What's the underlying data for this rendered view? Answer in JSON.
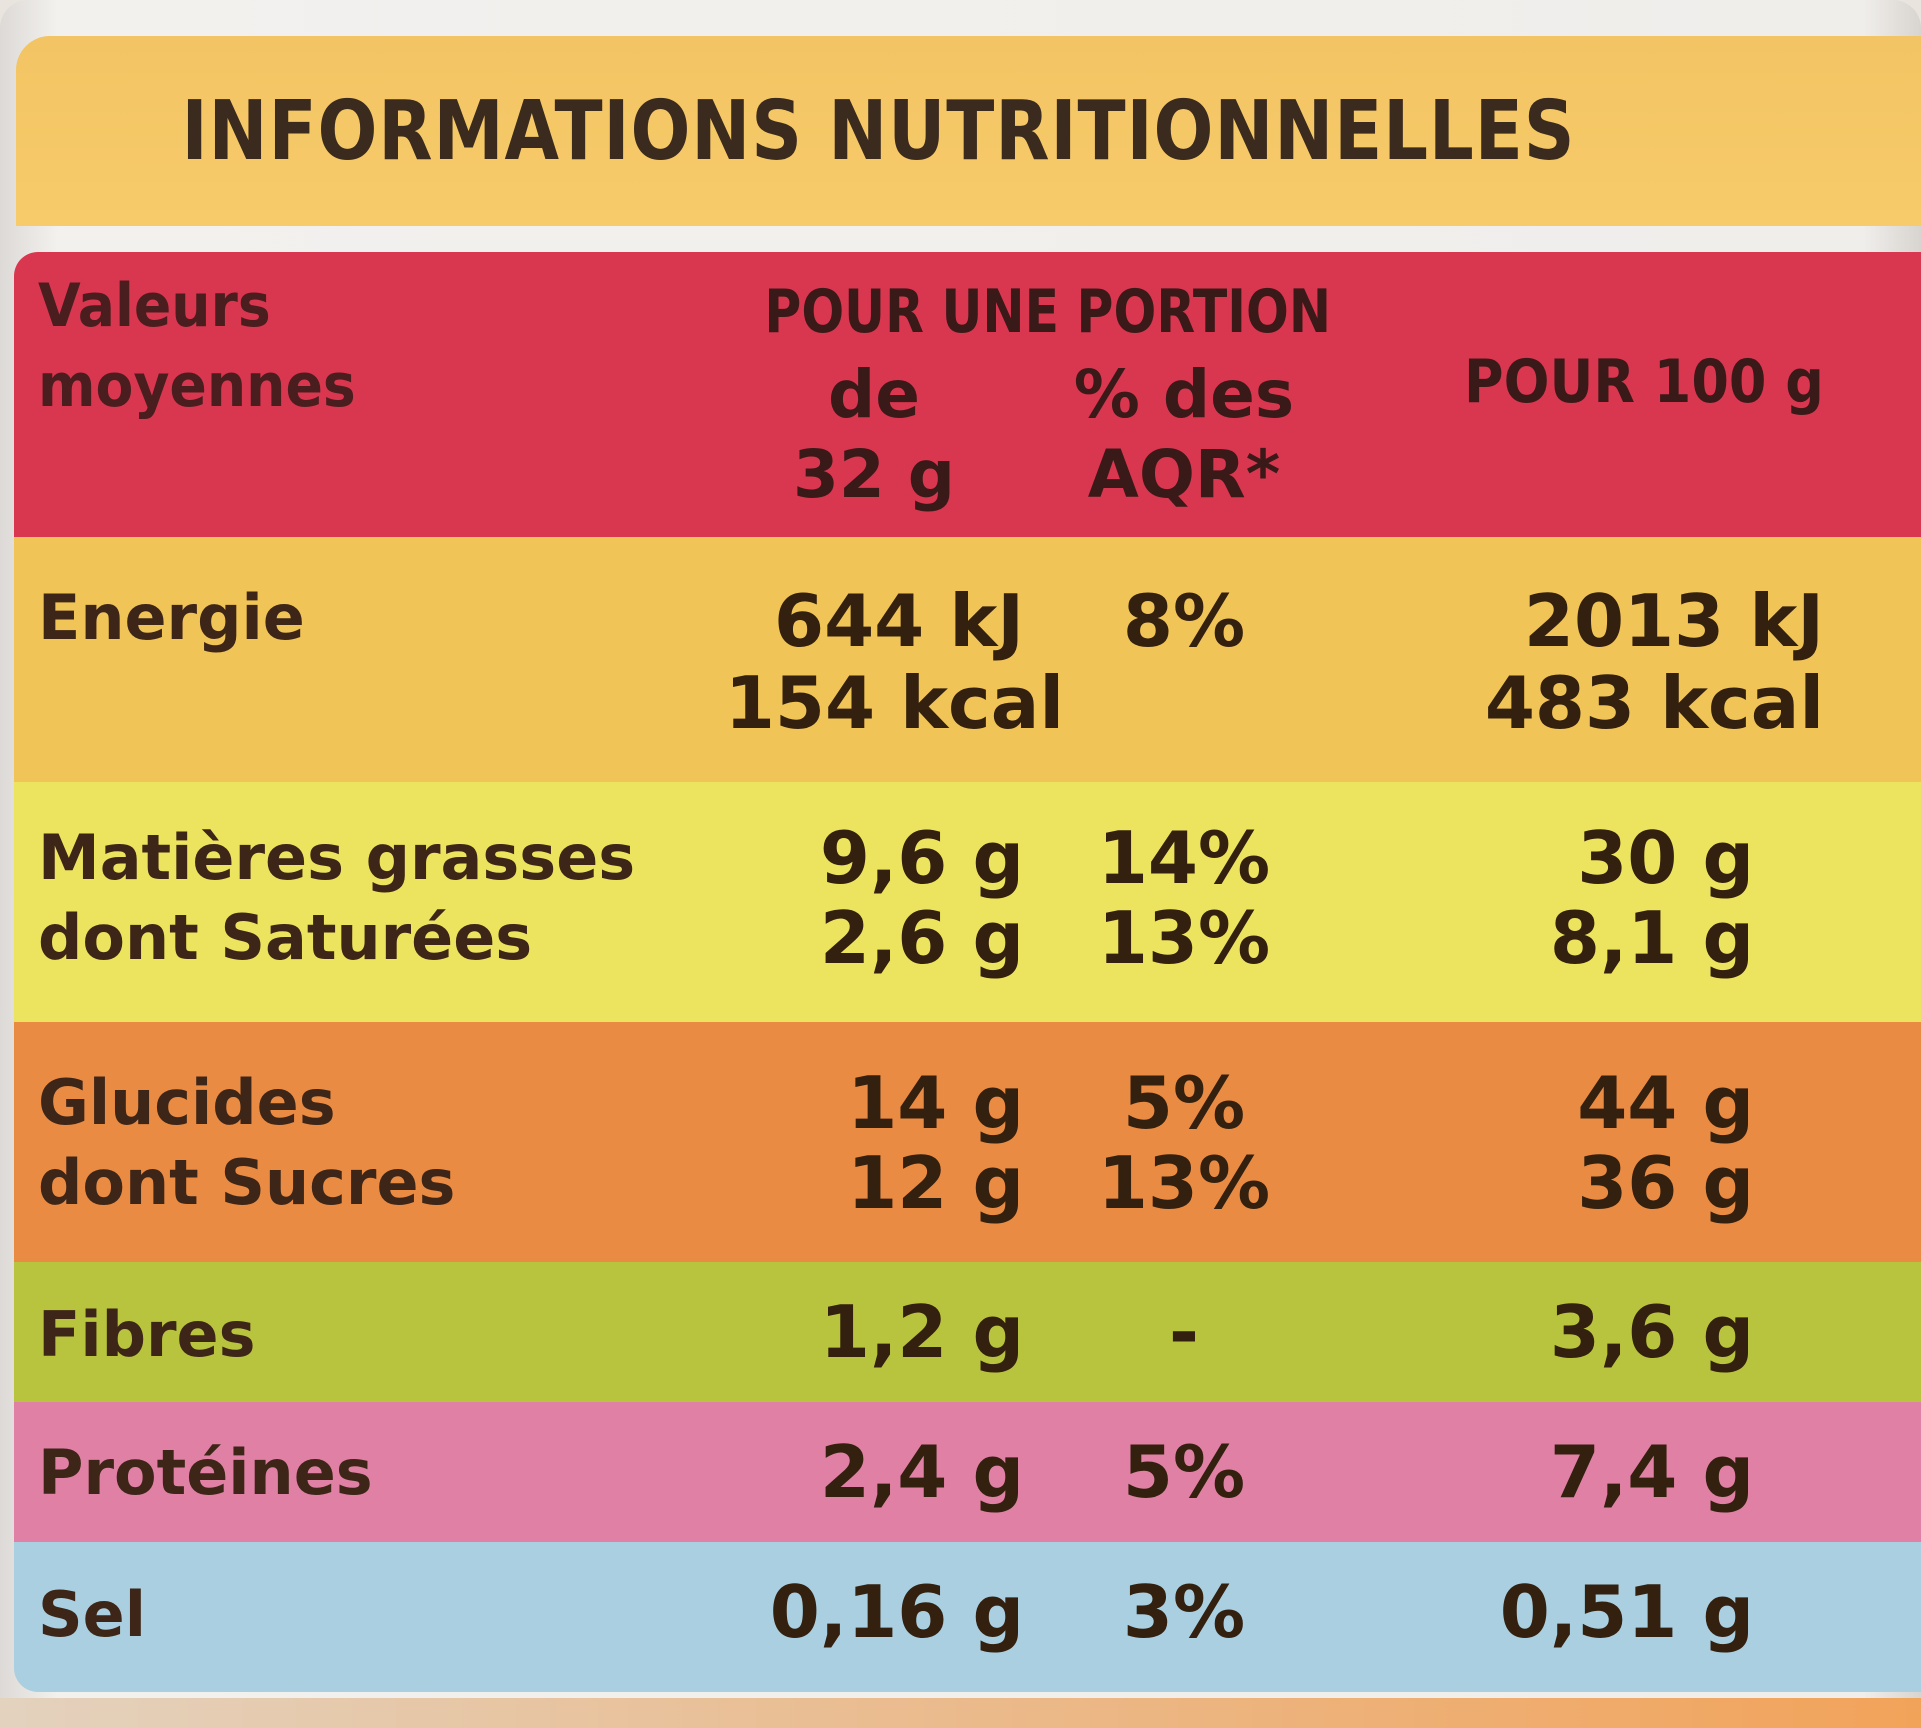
{
  "title": "INFORMATIONS NUTRITIONNELLES",
  "header": {
    "label_line1": "Valeurs",
    "label_line2": "moyennes",
    "portion_title": "POUR UNE PORTION",
    "portion_de": "de",
    "portion_qty": "32 g",
    "aqr_line1": "% des",
    "aqr_line2": "AQR*",
    "per100": "POUR 100 g"
  },
  "rows": {
    "energy": {
      "label": "Energie",
      "portion_kj": "644 kJ",
      "portion_kcal": "154 kcal",
      "aqr": "8%",
      "per100_kj": "2013 kJ",
      "per100_kcal": "483 kcal"
    },
    "fat": {
      "label": "Matières grasses",
      "portion": "9,6 g",
      "aqr": "14%",
      "per100": "30 g"
    },
    "saturated": {
      "label": "dont Saturées",
      "portion": "2,6 g",
      "aqr": "13%",
      "per100": "8,1 g"
    },
    "carbs": {
      "label": "Glucides",
      "portion": "14 g",
      "aqr": "5%",
      "per100": "44 g"
    },
    "sugars": {
      "label": "dont Sucres",
      "portion": "12 g",
      "aqr": "13%",
      "per100": "36 g"
    },
    "fibres": {
      "label": "Fibres",
      "portion": "1,2 g",
      "aqr": "-",
      "per100": "3,6 g"
    },
    "proteins": {
      "label": "Protéines",
      "portion": "2,4 g",
      "aqr": "5%",
      "per100": "7,4 g"
    },
    "salt": {
      "label": "Sel",
      "portion": "0,16 g",
      "aqr": "3%",
      "per100": "0,51 g"
    }
  },
  "colors": {
    "header": "#d9364f",
    "energy": "#f1c457",
    "fat": "#ece45e",
    "carbs": "#ea8b43",
    "fibres": "#b8c43e",
    "proteins": "#e080a4",
    "salt": "#a9cfe0",
    "title_band": "#f7cb6a"
  }
}
